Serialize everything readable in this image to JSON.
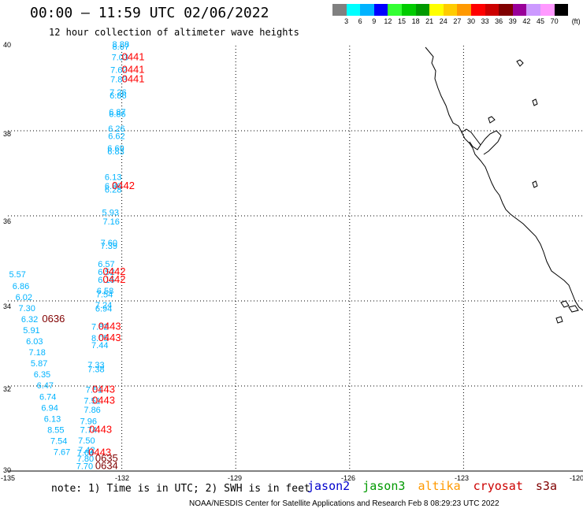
{
  "header": {
    "title": "00:00 — 11:59 UTC 02/06/2022",
    "subtitle": "12 hour collection of altimeter wave heights"
  },
  "legend": {
    "colors": [
      "#808080",
      "#00ffff",
      "#00b3ff",
      "#0000ff",
      "#33ff33",
      "#00cc00",
      "#009900",
      "#ffff00",
      "#ffcc00",
      "#ff9900",
      "#ff0000",
      "#cc0000",
      "#800000",
      "#990099",
      "#cc99ff",
      "#ff99ff",
      "#000000"
    ],
    "labels": [
      "3",
      "6",
      "9",
      "12",
      "15",
      "18",
      "21",
      "24",
      "27",
      "30",
      "33",
      "36",
      "39",
      "42",
      "45",
      "70",
      "(ft)"
    ]
  },
  "map": {
    "lon_labels": [
      "-135",
      "-132",
      "-129",
      "-126",
      "-123",
      "-120"
    ],
    "lat_labels": [
      "40",
      "38",
      "36",
      "34",
      "32",
      "30"
    ],
    "coast_color": "#000000",
    "grid_color": "#000000"
  },
  "observations": {
    "jason3_cyan": [
      {
        "lon": -132.25,
        "lat": 39.96,
        "v": "8.88"
      },
      {
        "lon": -132.25,
        "lat": 39.91,
        "v": "8.07"
      },
      {
        "lon": -132.27,
        "lat": 39.66,
        "v": "7.03"
      },
      {
        "lon": -132.3,
        "lat": 39.36,
        "v": "7.62"
      },
      {
        "lon": -132.3,
        "lat": 39.14,
        "v": "7.83"
      },
      {
        "lon": -132.32,
        "lat": 38.83,
        "v": "7.26"
      },
      {
        "lon": -132.32,
        "lat": 38.76,
        "v": "6.86"
      },
      {
        "lon": -132.34,
        "lat": 38.37,
        "v": "6.87"
      },
      {
        "lon": -132.34,
        "lat": 38.32,
        "v": "6.86"
      },
      {
        "lon": -132.36,
        "lat": 37.98,
        "v": "6.26"
      },
      {
        "lon": -132.36,
        "lat": 37.81,
        "v": "6.62"
      },
      {
        "lon": -132.38,
        "lat": 37.52,
        "v": "6.69"
      },
      {
        "lon": -132.38,
        "lat": 37.44,
        "v": "6.83"
      },
      {
        "lon": -132.45,
        "lat": 36.84,
        "v": "6.13"
      },
      {
        "lon": -132.45,
        "lat": 36.63,
        "v": "6.86"
      },
      {
        "lon": -132.45,
        "lat": 36.55,
        "v": "6.28"
      },
      {
        "lon": -132.52,
        "lat": 36.01,
        "v": "5.93"
      },
      {
        "lon": -132.5,
        "lat": 35.8,
        "v": "7.16"
      },
      {
        "lon": -132.56,
        "lat": 35.3,
        "v": "7.60"
      },
      {
        "lon": -132.56,
        "lat": 35.22,
        "v": "7.39"
      },
      {
        "lon": -132.63,
        "lat": 34.8,
        "v": "6.57"
      },
      {
        "lon": -132.63,
        "lat": 34.61,
        "v": "6.52"
      },
      {
        "lon": -132.63,
        "lat": 34.43,
        "v": "6.15"
      },
      {
        "lon": -132.66,
        "lat": 34.17,
        "v": "6.58"
      },
      {
        "lon": -132.68,
        "lat": 34.08,
        "v": "7.54"
      },
      {
        "lon": -132.7,
        "lat": 33.83,
        "v": "7.24"
      },
      {
        "lon": -132.7,
        "lat": 33.75,
        "v": "6.94"
      },
      {
        "lon": -132.8,
        "lat": 33.32,
        "v": "7.82"
      },
      {
        "lon": -132.8,
        "lat": 33.06,
        "v": "8.05"
      },
      {
        "lon": -132.8,
        "lat": 32.89,
        "v": "7.44"
      },
      {
        "lon": -132.9,
        "lat": 32.43,
        "v": "7.33"
      },
      {
        "lon": -132.9,
        "lat": 32.32,
        "v": "7.38"
      },
      {
        "lon": -132.95,
        "lat": 31.84,
        "v": "7.51"
      },
      {
        "lon": -133.0,
        "lat": 31.58,
        "v": "7.51"
      },
      {
        "lon": -133.0,
        "lat": 31.37,
        "v": "7.86"
      },
      {
        "lon": -133.1,
        "lat": 31.1,
        "v": "7.96"
      },
      {
        "lon": -133.1,
        "lat": 30.9,
        "v": "7.74"
      },
      {
        "lon": -133.15,
        "lat": 30.65,
        "v": "7.50"
      },
      {
        "lon": -133.15,
        "lat": 30.43,
        "v": "7.42"
      },
      {
        "lon": -133.18,
        "lat": 30.36,
        "v": "7.64"
      },
      {
        "lon": -133.18,
        "lat": 30.22,
        "v": "7.80"
      },
      {
        "lon": -133.2,
        "lat": 30.05,
        "v": "7.70"
      }
    ],
    "jason2_cyan": [
      {
        "lon": -134.97,
        "lat": 34.56,
        "v": "5.57"
      },
      {
        "lon": -134.88,
        "lat": 34.28,
        "v": "6.86"
      },
      {
        "lon": -134.8,
        "lat": 34.02,
        "v": "6.02"
      },
      {
        "lon": -134.72,
        "lat": 33.76,
        "v": "7.30"
      },
      {
        "lon": -134.65,
        "lat": 33.5,
        "v": "6.32"
      },
      {
        "lon": -134.6,
        "lat": 33.24,
        "v": "5.91"
      },
      {
        "lon": -134.52,
        "lat": 32.98,
        "v": "6.03"
      },
      {
        "lon": -134.45,
        "lat": 32.72,
        "v": "7.18"
      },
      {
        "lon": -134.4,
        "lat": 32.46,
        "v": "5.87"
      },
      {
        "lon": -134.32,
        "lat": 32.2,
        "v": "6.35"
      },
      {
        "lon": -134.24,
        "lat": 31.94,
        "v": "6.47"
      },
      {
        "lon": -134.17,
        "lat": 31.68,
        "v": "6.74"
      },
      {
        "lon": -134.12,
        "lat": 31.42,
        "v": "6.94"
      },
      {
        "lon": -134.05,
        "lat": 31.16,
        "v": "6.13"
      },
      {
        "lon": -133.96,
        "lat": 30.9,
        "v": "8.55"
      },
      {
        "lon": -133.88,
        "lat": 30.64,
        "v": "7.54"
      },
      {
        "lon": -133.8,
        "lat": 30.38,
        "v": "7.67"
      }
    ],
    "times_red": [
      {
        "lon": -132.0,
        "lat": 39.66,
        "v": "0441"
      },
      {
        "lon": -132.0,
        "lat": 39.36,
        "v": "0441"
      },
      {
        "lon": -132.0,
        "lat": 39.14,
        "v": "0441"
      },
      {
        "lon": -132.26,
        "lat": 36.63,
        "v": "0442"
      },
      {
        "lon": -132.5,
        "lat": 34.61,
        "v": "0442"
      },
      {
        "lon": -132.5,
        "lat": 34.43,
        "v": "0442"
      },
      {
        "lon": -132.62,
        "lat": 33.32,
        "v": "0443"
      },
      {
        "lon": -132.62,
        "lat": 33.06,
        "v": "0443"
      },
      {
        "lon": -132.78,
        "lat": 31.84,
        "v": "0443"
      },
      {
        "lon": -132.78,
        "lat": 31.58,
        "v": "0443"
      },
      {
        "lon": -132.86,
        "lat": 30.9,
        "v": "0443"
      },
      {
        "lon": -132.88,
        "lat": 30.36,
        "v": "0443"
      }
    ],
    "times_darkred": [
      {
        "lon": -134.1,
        "lat": 33.5,
        "v": "0636"
      },
      {
        "lon": -132.7,
        "lat": 30.22,
        "v": "0635"
      },
      {
        "lon": -132.7,
        "lat": 30.05,
        "v": "0634"
      }
    ]
  },
  "satellites": [
    {
      "name": "jason2",
      "color": "#0000cc"
    },
    {
      "name": "jason3",
      "color": "#009900"
    },
    {
      "name": "altika",
      "color": "#ff9900"
    },
    {
      "name": "cryosat",
      "color": "#cc0000"
    },
    {
      "name": "s3a",
      "color": "#800000"
    }
  ],
  "footer": {
    "note": "note:  1) Time is in UTC;  2) SWH is in feet",
    "credit": "NOAA/NESDIS Center for Satellite Applications and Research    Feb  8 08:29:23 UTC 2022"
  }
}
